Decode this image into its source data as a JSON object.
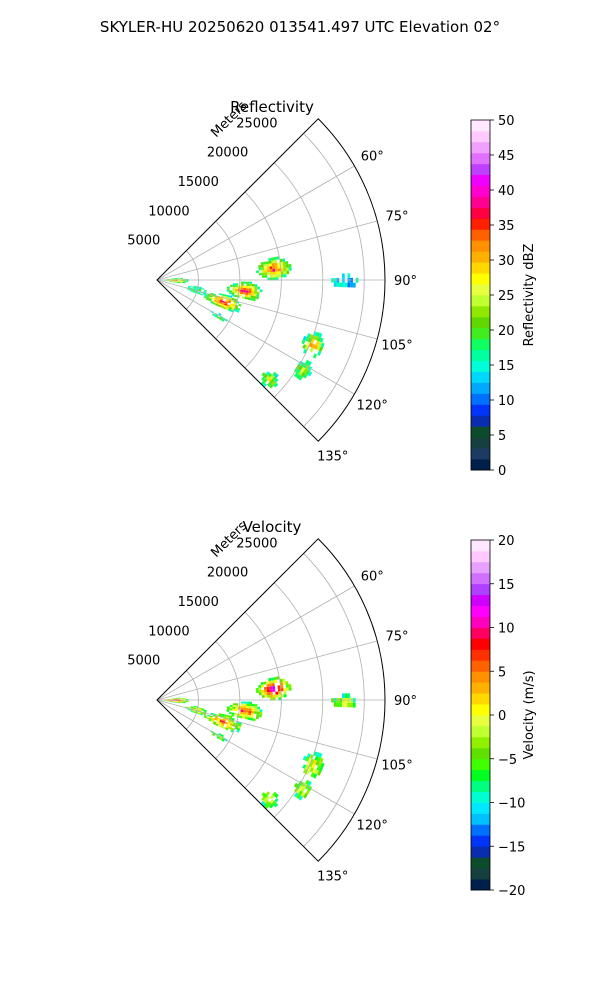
{
  "figure": {
    "title": "SKYLER-HU  20250620  013541.497 UTC Elevation 02°"
  },
  "chart_data": [
    {
      "type": "heatmap",
      "projection": "polar-sector",
      "title": "Reflectivity",
      "radial_label": "Meters",
      "radial_ticks": [
        "5000",
        "10000",
        "15000",
        "20000",
        "25000"
      ],
      "radial_tick_values": [
        5000,
        10000,
        15000,
        20000,
        25000
      ],
      "r_max": 27500,
      "angle_ticks": [
        "60°",
        "75°",
        "90°",
        "105°",
        "120°",
        "135°"
      ],
      "angle_tick_values": [
        60,
        75,
        90,
        105,
        120,
        135
      ],
      "angle_range": [
        45,
        135
      ],
      "grid": true,
      "colorbar": {
        "label": "Reflectivity dBZ",
        "range": [
          0,
          50
        ],
        "ticks": [
          "0",
          "5",
          "10",
          "15",
          "20",
          "25",
          "30",
          "35",
          "40",
          "45",
          "50"
        ],
        "tick_values": [
          0,
          5,
          10,
          15,
          20,
          25,
          30,
          35,
          40,
          45,
          50
        ],
        "colors": [
          "#00204c",
          "#1c3a62",
          "#173f3f",
          "#0c4c2c",
          "#0a2cb0",
          "#0034f8",
          "#0070ff",
          "#00a8ff",
          "#00d8ff",
          "#00ffd8",
          "#00ffa0",
          "#10ff60",
          "#40ee20",
          "#60d800",
          "#90e800",
          "#c0ff30",
          "#e8ff40",
          "#ffff00",
          "#ffd800",
          "#ffb000",
          "#ff9000",
          "#ff6000",
          "#ff2000",
          "#ff0040",
          "#ff0090",
          "#ff00d0",
          "#f000ff",
          "#c040ff",
          "#e070ff",
          "#f0a0ff",
          "#ffc8ff",
          "#ffe8ff"
        ]
      },
      "echo_regions": [
        {
          "az": [
            79,
            89
          ],
          "r": [
            12000,
            16000
          ],
          "peak": 38
        },
        {
          "az": [
            91,
            102
          ],
          "r": [
            8500,
            12500
          ],
          "peak": 39
        },
        {
          "az": [
            102,
            113
          ],
          "r": [
            6000,
            10500
          ],
          "peak": 40
        },
        {
          "az": [
            84,
            97
          ],
          "r": [
            500,
            3500
          ],
          "peak": 36
        },
        {
          "az": [
            99,
            108
          ],
          "r": [
            3500,
            6000
          ],
          "peak": 18
        },
        {
          "az": [
            118,
            122
          ],
          "r": [
            7500,
            9500
          ],
          "peak": 22
        },
        {
          "az": [
            108,
            116
          ],
          "r": [
            19000,
            21500
          ],
          "peak": 34
        },
        {
          "az": [
            118,
            124
          ],
          "r": [
            19500,
            21500
          ],
          "peak": 26
        },
        {
          "az": [
            128,
            134
          ],
          "r": [
            17000,
            19000
          ],
          "peak": 28
        },
        {
          "az": [
            88,
            92
          ],
          "r": [
            21000,
            24000
          ],
          "peak": 12
        }
      ]
    },
    {
      "type": "heatmap",
      "projection": "polar-sector",
      "title": "Velocity",
      "radial_label": "Meters",
      "radial_ticks": [
        "5000",
        "10000",
        "15000",
        "20000",
        "25000"
      ],
      "radial_tick_values": [
        5000,
        10000,
        15000,
        20000,
        25000
      ],
      "r_max": 27500,
      "angle_ticks": [
        "60°",
        "75°",
        "90°",
        "105°",
        "120°",
        "135°"
      ],
      "angle_tick_values": [
        60,
        75,
        90,
        105,
        120,
        135
      ],
      "angle_range": [
        45,
        135
      ],
      "grid": true,
      "colorbar": {
        "label": "Velocity (m/s)",
        "range": [
          -20,
          20
        ],
        "ticks": [
          "−20",
          "−15",
          "−10",
          "−5",
          "0",
          "5",
          "10",
          "15",
          "20"
        ],
        "tick_values": [
          -20,
          -15,
          -10,
          -5,
          0,
          5,
          10,
          15,
          20
        ],
        "colors": [
          "#00204c",
          "#173f3f",
          "#0c4c2c",
          "#0a2cb0",
          "#0034f8",
          "#0070ff",
          "#00c0ff",
          "#00e8ff",
          "#00ffd0",
          "#00ff80",
          "#00ff20",
          "#40ff00",
          "#60e000",
          "#90f000",
          "#c0ff30",
          "#e8ff40",
          "#ffff00",
          "#ffd800",
          "#ffb000",
          "#ff9000",
          "#ff6000",
          "#ff3000",
          "#ff0000",
          "#ff0060",
          "#ff00c0",
          "#ff00ff",
          "#d000ff",
          "#b040ff",
          "#d070ff",
          "#e8a0ff",
          "#ffc8ff",
          "#ffe8ff"
        ]
      },
      "echo_regions": [
        {
          "az": [
            79,
            89
          ],
          "r": [
            12000,
            16000
          ],
          "peak": 15
        },
        {
          "az": [
            91,
            102
          ],
          "r": [
            8500,
            12500
          ],
          "peak": 9
        },
        {
          "az": [
            102,
            113
          ],
          "r": [
            6000,
            10500
          ],
          "peak": 7
        },
        {
          "az": [
            84,
            97
          ],
          "r": [
            500,
            3500
          ],
          "peak": 14
        },
        {
          "az": [
            99,
            108
          ],
          "r": [
            3500,
            6000
          ],
          "peak": 3
        },
        {
          "az": [
            118,
            122
          ],
          "r": [
            7500,
            9500
          ],
          "peak": -3
        },
        {
          "az": [
            108,
            116
          ],
          "r": [
            19000,
            21500
          ],
          "peak": 2
        },
        {
          "az": [
            118,
            124
          ],
          "r": [
            19500,
            21500
          ],
          "peak": 1
        },
        {
          "az": [
            128,
            134
          ],
          "r": [
            17000,
            19000
          ],
          "peak": 2
        },
        {
          "az": [
            88,
            92
          ],
          "r": [
            21000,
            24000
          ],
          "peak": 0
        }
      ]
    }
  ]
}
